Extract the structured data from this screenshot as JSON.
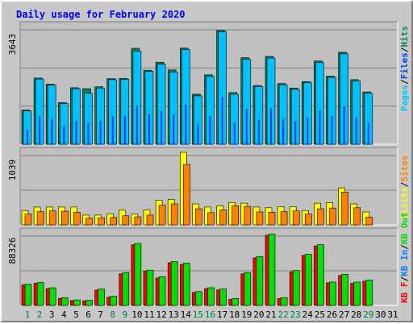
{
  "chart_data": [
    {
      "type": "bar",
      "title": "Daily usage for February 2020",
      "panel": "top",
      "ylabel_max": "3643",
      "ymax": 3643,
      "legend_parts": [
        "Pages",
        "/",
        "Files",
        "/",
        "Hits"
      ],
      "categories": [
        "1",
        "2",
        "3",
        "4",
        "5",
        "6",
        "7",
        "8",
        "9",
        "10",
        "11",
        "12",
        "13",
        "14",
        "15",
        "16",
        "17",
        "18",
        "19",
        "20",
        "21",
        "22",
        "23",
        "24",
        "25",
        "26",
        "27",
        "28",
        "29",
        "30",
        "31"
      ],
      "weekend_days": [
        1,
        2,
        8,
        9,
        15,
        16,
        22,
        23,
        29
      ],
      "series": [
        {
          "name": "Hits",
          "values": [
            1060,
            2050,
            1860,
            1290,
            1750,
            1720,
            1780,
            2030,
            2040,
            2970,
            2290,
            2540,
            2300,
            2980,
            1550,
            2150,
            3520,
            1600,
            2680,
            1820,
            2720,
            1880,
            1740,
            1940,
            2580,
            2110,
            2850,
            2000,
            1620,
            0,
            0
          ]
        },
        {
          "name": "Files",
          "values": [
            1030,
            2020,
            1830,
            1260,
            1720,
            1580,
            1740,
            2000,
            2010,
            2880,
            2260,
            2480,
            2240,
            2930,
            1500,
            2100,
            3490,
            1550,
            2630,
            1790,
            2670,
            1840,
            1700,
            1910,
            2530,
            2070,
            2800,
            1960,
            1580,
            0,
            0
          ]
        },
        {
          "name": "Pages",
          "values": [
            440,
            860,
            780,
            560,
            720,
            660,
            720,
            860,
            860,
            1180,
            940,
            1040,
            940,
            1220,
            640,
            880,
            1460,
            660,
            1100,
            760,
            1120,
            780,
            720,
            820,
            1060,
            880,
            1180,
            820,
            660,
            0,
            0
          ]
        }
      ]
    },
    {
      "type": "bar",
      "panel": "middle",
      "ylabel_max": "1039",
      "ymax": 1039,
      "legend_parts": [
        "Visits",
        "/",
        "Sites"
      ],
      "series": [
        {
          "name": "Visits",
          "values": [
            205,
            255,
            255,
            255,
            255,
            140,
            140,
            160,
            210,
            155,
            215,
            355,
            365,
            1039,
            300,
            255,
            275,
            320,
            310,
            255,
            245,
            260,
            260,
            205,
            310,
            320,
            530,
            300,
            185,
            0,
            0
          ]
        },
        {
          "name": "Sites",
          "values": [
            155,
            190,
            200,
            195,
            180,
            95,
            100,
            105,
            130,
            115,
            140,
            280,
            300,
            865,
            230,
            175,
            215,
            275,
            265,
            185,
            180,
            190,
            200,
            155,
            230,
            240,
            470,
            245,
            110,
            0,
            0
          ]
        }
      ]
    },
    {
      "type": "bar",
      "panel": "bottom",
      "ylabel_max": "88326",
      "ymax": 88326,
      "legend_parts": [
        "KB F",
        "/",
        "KB In",
        "/",
        "KB Out"
      ],
      "series": [
        {
          "name": "KB Out",
          "values": [
            26000,
            28000,
            21500,
            9500,
            6800,
            6300,
            20000,
            11200,
            40000,
            75500,
            43000,
            35000,
            53500,
            51500,
            16900,
            21600,
            20100,
            8500,
            40000,
            59500,
            86800,
            9500,
            42500,
            62500,
            74000,
            28500,
            38000,
            28500,
            31000,
            0,
            0
          ]
        },
        {
          "name": "KB F",
          "values": [
            25000,
            27000,
            20500,
            8500,
            6000,
            5500,
            18800,
            10000,
            38500,
            74000,
            41500,
            33500,
            52000,
            50000,
            15800,
            20500,
            19000,
            7500,
            38500,
            58000,
            85500,
            8500,
            41000,
            61000,
            72500,
            27500,
            36500,
            27000,
            29500,
            0,
            0
          ]
        }
      ]
    }
  ],
  "colors": {
    "title": "#0000ff",
    "day_weekday": "#000000",
    "day_weekend": "#008040",
    "hits": "#00805c",
    "files": "#0040ff",
    "pages": "#00c0ff",
    "visits": "#ffff00",
    "sites": "#ff8000",
    "kbout": "#00e000",
    "kbf": "#ff0000",
    "kbin": "#0080ff",
    "background": "#c8c8c8",
    "panel_bg": "#c0c0c0",
    "grid": "#808080"
  }
}
